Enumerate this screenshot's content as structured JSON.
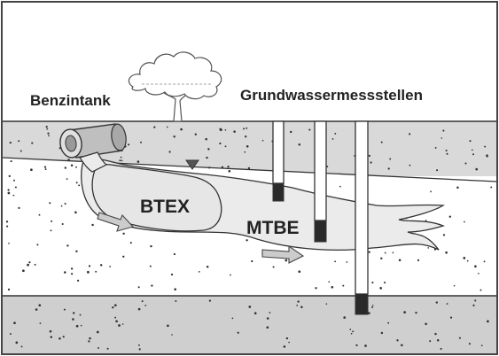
{
  "labels": {
    "tank": "Benzintank",
    "wells": "Grundwassermessstellen",
    "btex": "BTEX",
    "mtbe": "MTBE"
  },
  "colors": {
    "sky": "#ffffff",
    "topsoil": "#d9d9d9",
    "aquifer": "#ffffff",
    "bedrock": "#cfcfcf",
    "plume": "#ebebeb",
    "outline": "#333333",
    "well_screen": "#2a2a2a",
    "arrow": "#cccccc"
  },
  "icons": {
    "tree": "tree-icon",
    "tank": "tank-pipe-icon",
    "water_table": "water-table-triangle-icon",
    "flow_arrow": "flow-arrow-icon"
  }
}
